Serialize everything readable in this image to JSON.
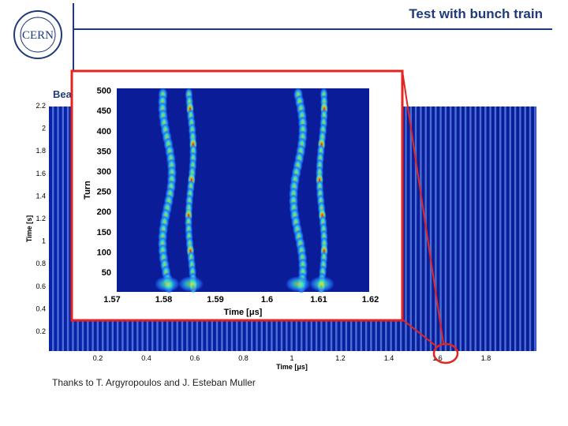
{
  "slide": {
    "title": "Test with bunch train",
    "beam_label": "Bea",
    "thanks": "Thanks to T. Argyropoulos and J. Esteban Muller",
    "logo_text": "CERN"
  },
  "chart_data": [
    {
      "type": "heatmap",
      "name": "main",
      "xlabel": "Time [μs]",
      "ylabel": "Time [s]",
      "x_ticks": [
        "0.2",
        "0.4",
        "0.6",
        "0.8",
        "1",
        "1.2",
        "1.4",
        "1.6",
        "1.8"
      ],
      "y_ticks": [
        "0.2",
        "0.4",
        "0.6",
        "0.8",
        "1",
        "1.2",
        "1.4",
        "1.6",
        "1.8",
        "2",
        "2.2"
      ]
    },
    {
      "type": "heatmap",
      "name": "inset",
      "xlabel": "Time [μs]",
      "ylabel": "Turn",
      "x_ticks": [
        "1.57",
        "1.58",
        "1.59",
        "1.6",
        "1.61",
        "1.62"
      ],
      "y_ticks": [
        "50",
        "100",
        "150",
        "200",
        "250",
        "300",
        "350",
        "400",
        "450",
        "500"
      ]
    }
  ],
  "colors": {
    "accent": "#1f3b7a",
    "highlight": "#e52421",
    "plot_bg": "#0a1fa0"
  }
}
